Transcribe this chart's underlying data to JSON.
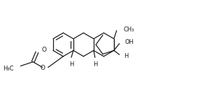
{
  "background": "#ffffff",
  "line_color": "#1a1a1a",
  "line_width": 0.9,
  "font_size": 5.5,
  "fig_width": 2.86,
  "fig_height": 1.32,
  "dpi": 100,
  "xlim": [
    0,
    286
  ],
  "ylim": [
    0,
    132
  ]
}
